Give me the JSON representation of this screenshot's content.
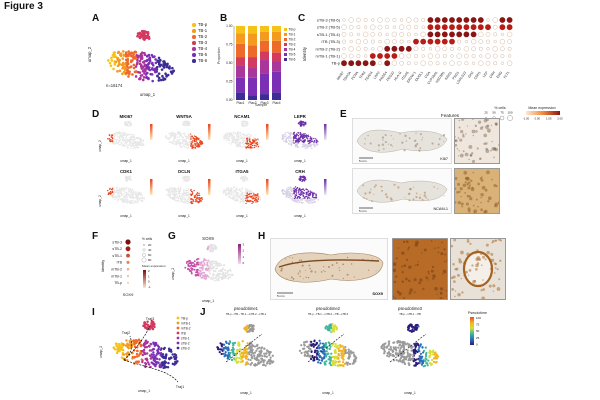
{
  "figure": {
    "title": "Figure 3"
  },
  "panel_labels": {
    "A": "A",
    "B": "B",
    "C": "C",
    "D": "D",
    "E": "E",
    "F": "F",
    "G": "G",
    "H": "H",
    "I": "I",
    "J": "J"
  },
  "colors": {
    "TB_p": "#f5c21a",
    "TB_1": "#f39a1f",
    "TB_2": "#ee6a2b",
    "TB_3": "#d33a60",
    "TB_4": "#a9369b",
    "TB_5": "#7a2fb5",
    "TB_6": "#3d2c93",
    "feature_low": "#e6e6e6",
    "feature_high": "#e8451e",
    "feature_purple": "#6b2fa8",
    "dot_high": "#8b1414",
    "dot_low": "#fbe0c0"
  },
  "panelA": {
    "legend": [
      "TB-p",
      "TB-1",
      "TB-2",
      "TB-3",
      "TB-4",
      "TB-5",
      "TB-6"
    ],
    "n_label": "n=16174",
    "xlabel": "umap_1",
    "ylabel": "umap_2"
  },
  "panelB": {
    "chart_data": {
      "type": "bar",
      "title": "",
      "xlabel": "Sample",
      "ylabel": "Proportion",
      "categories": [
        "Plac1",
        "Plac2",
        "Plac3",
        "Plac4"
      ],
      "ylim": [
        0,
        1
      ],
      "yticks": [
        "0.00",
        "0.25",
        "0.50",
        "0.75",
        "1.00"
      ],
      "series": [
        {
          "name": "TB-6",
          "values": [
            0.1,
            0.06,
            0.08,
            0.1
          ]
        },
        {
          "name": "TB-5",
          "values": [
            0.2,
            0.24,
            0.28,
            0.28
          ]
        },
        {
          "name": "TB-4",
          "values": [
            0.16,
            0.14,
            0.18,
            0.14
          ]
        },
        {
          "name": "TB-3",
          "values": [
            0.12,
            0.14,
            0.12,
            0.12
          ]
        },
        {
          "name": "TB-2",
          "values": [
            0.18,
            0.16,
            0.14,
            0.16
          ]
        },
        {
          "name": "TB-1",
          "values": [
            0.14,
            0.16,
            0.12,
            0.12
          ]
        },
        {
          "name": "TB-p",
          "values": [
            0.1,
            0.1,
            0.08,
            0.08
          ]
        }
      ]
    }
  },
  "panelC": {
    "rows": [
      "sTB-3 (TB-6)",
      "sTB-2 (TB-5)",
      "sTB-1 (TB-4)",
      "iTB (TB-3)",
      "mTB-2 (TB-2)",
      "mTB-1 (TB-1)",
      "TB-p"
    ],
    "cols": [
      "MKI67",
      "TOP2A",
      "PCNA",
      "TP63",
      "TEAD4",
      "LRP2",
      "PAGE4",
      "PEG10",
      "HLA-G",
      "ITGA5",
      "ERVW-1",
      "OVOL1",
      "CGA",
      "CYP19A1",
      "HSD3B1",
      "KISS1",
      "PSG1",
      "LGALS13",
      "GH2",
      "CSH1",
      "LEP",
      "CRH",
      "ENG",
      "FLT1"
    ],
    "dots_high_row": [
      [
        0,
        0,
        0,
        0,
        0,
        0,
        0,
        0,
        0,
        0,
        0,
        0,
        1,
        1,
        1,
        1,
        1,
        1,
        1,
        1,
        0,
        0,
        1,
        1
      ],
      [
        0,
        0,
        0,
        0,
        0,
        0,
        0,
        0,
        0,
        0,
        0,
        0,
        1,
        1,
        1,
        1,
        1,
        1,
        1,
        1,
        1,
        0,
        1,
        1
      ],
      [
        0,
        0,
        0,
        0,
        0,
        0,
        0,
        0,
        0,
        0,
        0,
        0,
        1,
        1,
        1,
        1,
        1,
        1,
        1,
        0,
        0,
        0,
        0,
        0
      ],
      [
        0,
        0,
        0,
        0,
        0,
        0,
        0,
        0,
        0,
        0,
        1,
        1,
        1,
        1,
        1,
        1,
        0,
        0,
        0,
        0,
        0,
        0,
        0,
        0
      ],
      [
        0,
        0,
        0,
        0,
        0,
        0,
        1,
        1,
        1,
        1,
        0,
        0,
        0,
        0,
        0,
        0,
        0,
        0,
        0,
        0,
        0,
        0,
        0,
        0
      ],
      [
        0,
        0,
        0,
        0,
        1,
        1,
        1,
        1,
        0,
        0,
        0,
        0,
        0,
        0,
        0,
        0,
        0,
        0,
        0,
        0,
        0,
        0,
        0,
        0
      ],
      [
        1,
        1,
        1,
        1,
        1,
        0,
        1,
        0,
        0,
        0,
        0,
        0,
        0,
        0,
        0,
        0,
        0,
        0,
        0,
        0,
        0,
        0,
        0,
        0
      ]
    ],
    "xlabel": "Features",
    "ylabel": "Identity",
    "pct_title": "% cells",
    "pct_ticks": [
      "25",
      "50",
      "75",
      "100"
    ],
    "expr_title": "Mean expression",
    "expr_ticks": [
      "-1.00",
      "0.00",
      "1.00",
      "2.00"
    ]
  },
  "panelD": {
    "genes": [
      "MKI67",
      "WNT5A",
      "NCAM1",
      "LEPR",
      "CDK1",
      "OCLN",
      "ITGA5",
      "CRH"
    ],
    "xlabel": "umap_1",
    "ylabel": "umap_2"
  },
  "panelE": {
    "labels": [
      "KI67",
      "NCAM-1"
    ],
    "scale": "5 mm"
  },
  "panelF": {
    "rows": [
      "sTB-3",
      "sTB-2",
      "sTB-1",
      "iTB",
      "mTB-2",
      "mTB-1",
      "TB-p"
    ],
    "gene": "SOX9",
    "ylabel": "Identity",
    "pct_title": "% cells",
    "pct_ticks": [
      "20",
      "40",
      "60",
      "80"
    ],
    "expr_title": "Mean expression",
    "expr_ticks": [
      "-1",
      "0",
      "1",
      "2"
    ]
  },
  "panelG": {
    "gene": "SOX9",
    "xlabel": "umap_1",
    "ylabel": "umap_2",
    "scale_ticks": [
      "3",
      "2",
      "1",
      "0"
    ]
  },
  "panelH": {
    "label": "SOX9",
    "scale": "5 mm"
  },
  "panelI": {
    "legend": [
      "TB-p",
      "mTB-1",
      "mTB-2",
      "iTB",
      "sTB-1",
      "sTB-2",
      "sTB-3"
    ],
    "traj_labels": [
      "Traj3",
      "Traj2",
      "Traj1"
    ],
    "xlabel": "umap_1",
    "ylabel": "umap_2"
  },
  "panelJ": {
    "titles": [
      "pseudotime1",
      "pseudotime2",
      "pseudotime3"
    ],
    "subtitles": [
      "TB-p→iTB→TB-1→mTB-2→sTB-1",
      "TB-p→TB-1→mTB-2→iTB→sTB-3",
      "TB-p→sTB-1→iTB"
    ],
    "legend_title": "Pseudotime",
    "legend_ticks": [
      "100",
      "75",
      "50",
      "25",
      "0"
    ],
    "xlabel": "umap_1"
  }
}
